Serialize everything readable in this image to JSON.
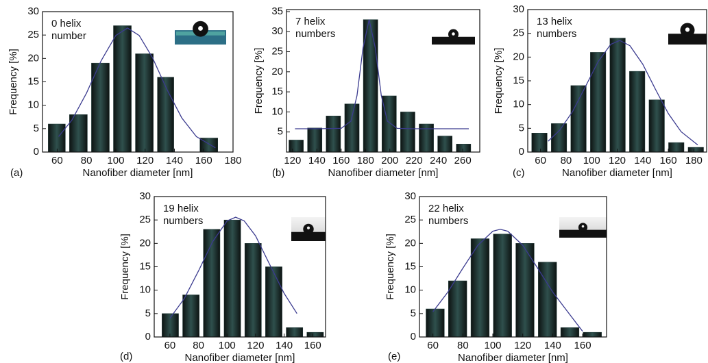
{
  "chart_data": [
    {
      "type": "histogram",
      "panel_label": "(a)",
      "annotation": [
        "0 helix",
        "number"
      ],
      "xlabel": "Nanofiber diameter [nm]",
      "ylabel": "Frequency [%]",
      "bins": [
        52.5,
        67,
        82,
        97,
        112,
        127,
        141,
        156,
        171
      ],
      "values": [
        6,
        8,
        19,
        27,
        21,
        16,
        0,
        3
      ],
      "color": "#1f3a38",
      "fit": {
        "x": [
          61,
          70,
          80,
          90,
          100,
          108,
          116,
          125,
          135,
          145,
          155,
          168
        ],
        "values": [
          3.3,
          6.8,
          12.6,
          19.5,
          24.9,
          26.5,
          24.9,
          20.2,
          13.3,
          7.3,
          3.3,
          0.9
        ],
        "color": "#3b3b8f"
      },
      "xlim": [
        50,
        180
      ],
      "ylim": [
        0,
        30
      ],
      "xticks": [
        60,
        80,
        100,
        120,
        140,
        160,
        180
      ],
      "yticks": [
        0,
        5,
        10,
        15,
        20,
        25,
        30
      ]
    },
    {
      "type": "histogram",
      "panel_label": "(b)",
      "annotation": [
        "7 helix",
        "numbers"
      ],
      "xlabel": "Nanofiber diameter [nm]",
      "ylabel": "Frequency [%]",
      "bins": [
        115.3,
        130.6,
        145.9,
        161.2,
        176.5,
        191.8,
        207.1,
        222.4,
        237.7,
        253,
        268.3
      ],
      "values": [
        3,
        6,
        9,
        12,
        33,
        14,
        10,
        7,
        4,
        2
      ],
      "color": "#1f3a38",
      "fit": {
        "x": [
          122,
          140,
          160,
          168,
          173,
          178,
          183,
          188,
          193,
          198,
          206,
          220,
          240,
          265
        ],
        "values": [
          5.8,
          5.8,
          5.9,
          7.7,
          14.1,
          26,
          33,
          26,
          14.1,
          7.7,
          5.9,
          5.8,
          5.8,
          5.8
        ],
        "color": "#3b3b8f"
      },
      "xlim": [
        115,
        274
      ],
      "ylim": [
        0,
        35.5
      ],
      "xticks": [
        120,
        140,
        160,
        180,
        200,
        220,
        240,
        260
      ],
      "yticks": [
        5,
        10,
        15,
        20,
        25,
        30,
        35
      ]
    },
    {
      "type": "histogram",
      "panel_label": "(c)",
      "annotation": [
        "13 helix",
        "numbers"
      ],
      "xlabel": "Nanofiber diameter [nm]",
      "ylabel": "Frequency [%]",
      "bins": [
        51.5,
        66.8,
        82.1,
        97.4,
        112.7,
        128,
        143.3,
        158.6,
        173.9,
        189.2
      ],
      "values": [
        4,
        6,
        14,
        21,
        24,
        17,
        11,
        2,
        1
      ],
      "color": "#1f3a38",
      "fit": {
        "x": [
          66,
          75,
          85,
          95,
          105,
          115,
          122,
          130,
          140,
          150,
          160,
          170,
          183
        ],
        "values": [
          2.3,
          4.6,
          8.5,
          13.7,
          19,
          22.7,
          23.5,
          22.4,
          18.5,
          13.2,
          8.1,
          4.3,
          1.5
        ],
        "color": "#3b3b8f"
      },
      "xlim": [
        50,
        190
      ],
      "ylim": [
        0,
        30
      ],
      "xticks": [
        60,
        80,
        100,
        120,
        140,
        160,
        180
      ],
      "yticks": [
        0,
        5,
        10,
        15,
        20,
        25,
        30
      ]
    },
    {
      "type": "histogram",
      "panel_label": "(d)",
      "annotation": [
        "19 helix",
        "numbers"
      ],
      "xlabel": "Nanofiber diameter [nm]",
      "ylabel": "Frequency [%]",
      "bins": [
        53,
        67.5,
        82,
        96.5,
        111,
        125.5,
        140,
        154.5,
        169
      ],
      "values": [
        5,
        9,
        23,
        25,
        20,
        15,
        2,
        1
      ],
      "color": "#1f3a38",
      "fit": {
        "x": [
          60,
          70,
          80,
          90,
          100,
          106,
          112,
          120,
          130,
          140,
          149
        ],
        "values": [
          4,
          8.2,
          14.1,
          20.4,
          24.8,
          25.6,
          24.8,
          21.6,
          15.4,
          9.3,
          5
        ],
        "color": "#3b3b8f"
      },
      "xlim": [
        49,
        169
      ],
      "ylim": [
        0,
        30
      ],
      "xticks": [
        60,
        80,
        100,
        120,
        140,
        160
      ],
      "yticks": [
        0,
        5,
        10,
        15,
        20,
        25,
        30
      ]
    },
    {
      "type": "histogram",
      "panel_label": "(e)",
      "annotation": [
        "22 helix",
        "numbers"
      ],
      "xlabel": "Nanofiber diameter [nm]",
      "ylabel": "Frequency [%]",
      "bins": [
        54,
        69,
        84,
        99,
        114,
        129,
        144,
        159,
        174
      ],
      "values": [
        6,
        12,
        21,
        22,
        20,
        16,
        2,
        1
      ],
      "color": "#1f3a38",
      "fit": {
        "x": [
          60,
          70,
          80,
          90,
          100,
          105,
          110,
          120,
          130,
          140,
          150,
          160
        ],
        "values": [
          5.4,
          9.6,
          14.7,
          19.6,
          22.6,
          23,
          22.6,
          19.6,
          14.7,
          9.6,
          5.4,
          1.2
        ],
        "color": "#3b3b8f"
      },
      "xlim": [
        51,
        176
      ],
      "ylim": [
        0,
        30
      ],
      "xticks": [
        60,
        80,
        100,
        120,
        140,
        160
      ],
      "yticks": [
        0,
        5,
        10,
        15,
        20,
        25,
        30
      ]
    }
  ]
}
